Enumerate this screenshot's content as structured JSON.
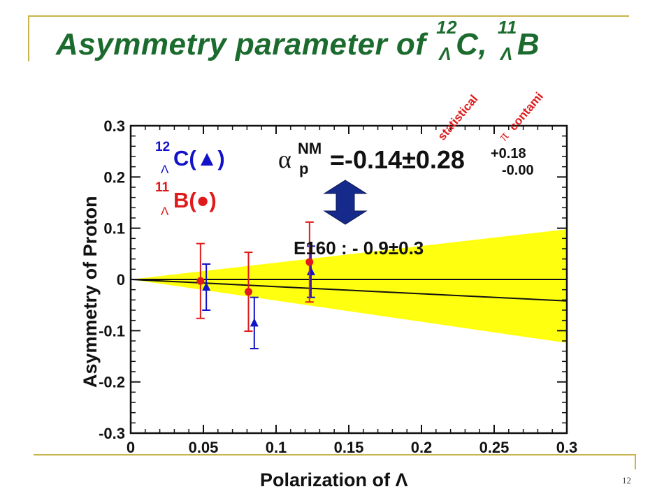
{
  "title": {
    "prefix": "Asymmetry parameter of ",
    "nucleus1_mass": "12",
    "nucleus1_sub": "Λ",
    "nucleus1_symbol": "C, ",
    "nucleus2_mass": "11",
    "nucleus2_sub": "Λ",
    "nucleus2_symbol": "B"
  },
  "slide_number": "12",
  "colors": {
    "title": "#1c6b2e",
    "decor": "#c8b44a",
    "band": "#ffff10",
    "series_c": "#1212c8",
    "series_b": "#e01a1a",
    "text": "#111111",
    "arrow": "#162a8c",
    "label_red": "#e01a1a"
  },
  "chart_data": {
    "type": "scatter",
    "xlabel": "Polarization of Λ",
    "ylabel": "Asymmetry of Proton",
    "xlim": [
      0,
      0.3
    ],
    "ylim": [
      -0.3,
      0.3
    ],
    "x_ticks": [
      "0",
      "0.05",
      "0.1",
      "0.15",
      "0.2",
      "0.25",
      "0.3"
    ],
    "y_ticks": [
      "0.3",
      "0.2",
      "0.1",
      "0",
      "-0.1",
      "-0.2",
      "-0.3"
    ],
    "legend": {
      "c_mass": "12",
      "c_sub": "Λ",
      "c_label": "C(▲)",
      "b_mass": "11",
      "b_sub": "Λ",
      "b_label": "B(●)"
    },
    "series": [
      {
        "name": "C(▲)",
        "marker": "triangle",
        "points": [
          {
            "x": 0.052,
            "y": -0.015,
            "yerr": 0.045
          },
          {
            "x": 0.085,
            "y": -0.085,
            "yerr": 0.05
          },
          {
            "x": 0.124,
            "y": 0.015,
            "yerr": 0.05
          }
        ]
      },
      {
        "name": "B(●)",
        "marker": "circle",
        "points": [
          {
            "x": 0.048,
            "y": -0.003,
            "yerr": 0.073
          },
          {
            "x": 0.081,
            "y": -0.024,
            "yerr": 0.077
          },
          {
            "x": 0.123,
            "y": 0.034,
            "yerr": 0.078
          }
        ]
      }
    ],
    "reference_lines": [
      {
        "from": [
          0,
          0
        ],
        "to": [
          0.3,
          0
        ]
      },
      {
        "from": [
          0,
          0
        ],
        "to": [
          0.3,
          -0.042
        ]
      }
    ],
    "band": {
      "upper_at_max": 0.098,
      "lower_at_max": -0.124
    },
    "result": {
      "alpha": "α",
      "alpha_sup": "NM",
      "alpha_sub": "p",
      "value": "=-0.14±0.28",
      "sys_plus": "+0.18",
      "sys_minus": "-0.00",
      "label_statistical": "statistical",
      "label_pi": "π",
      "label_contami": "contami"
    },
    "comparison": "E160 : - 0.9±0.3"
  }
}
